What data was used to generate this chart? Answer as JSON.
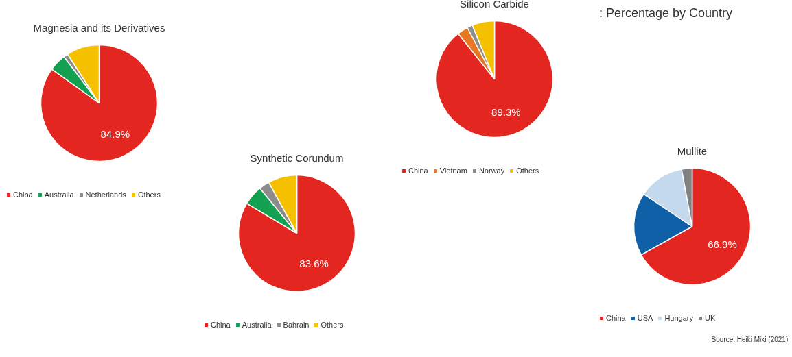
{
  "chart_data": [
    {
      "type": "pie",
      "title": "Magnesia and its Derivatives",
      "categories": [
        "China",
        "Australia",
        "Netherlands",
        "Others"
      ],
      "values": [
        84.9,
        4.8,
        1.2,
        9.1
      ],
      "colors": [
        "#e3261f",
        "#13a050",
        "#8c8c8c",
        "#f5c000"
      ],
      "value_labels": [
        "84.9%",
        null,
        null,
        null
      ],
      "legend": "bottom"
    },
    {
      "type": "pie",
      "title": "Synthetic Corundum",
      "categories": [
        "China",
        "Australia",
        "Bahrain",
        "Others"
      ],
      "values": [
        83.6,
        5.5,
        2.9,
        8.0
      ],
      "colors": [
        "#e3261f",
        "#13a050",
        "#8c8c8c",
        "#f5c000"
      ],
      "value_labels": [
        "83.6%",
        null,
        null,
        null
      ],
      "legend": "bottom"
    },
    {
      "type": "pie",
      "title": "Silicon Carbide",
      "categories": [
        "China",
        "Vietnam",
        "Norway",
        "Others"
      ],
      "values": [
        89.3,
        3.0,
        1.5,
        6.2
      ],
      "colors": [
        "#e3261f",
        "#e87722",
        "#8c8c8c",
        "#f5c000"
      ],
      "value_labels": [
        "89.3%",
        null,
        null,
        null
      ],
      "legend": "bottom"
    },
    {
      "type": "pie",
      "title": "Mullite",
      "categories": [
        "China",
        "USA",
        "Hungary",
        "UK"
      ],
      "values": [
        66.9,
        17.5,
        12.7,
        2.9
      ],
      "colors": [
        "#e3261f",
        "#1060a8",
        "#c5d9ee",
        "#808080"
      ],
      "value_labels": [
        "66.9%",
        null,
        null,
        null
      ],
      "legend": "bottom",
      "annotations": [
        ": Percentage by Country",
        "Source: Heiki Miki (2021)"
      ]
    }
  ]
}
